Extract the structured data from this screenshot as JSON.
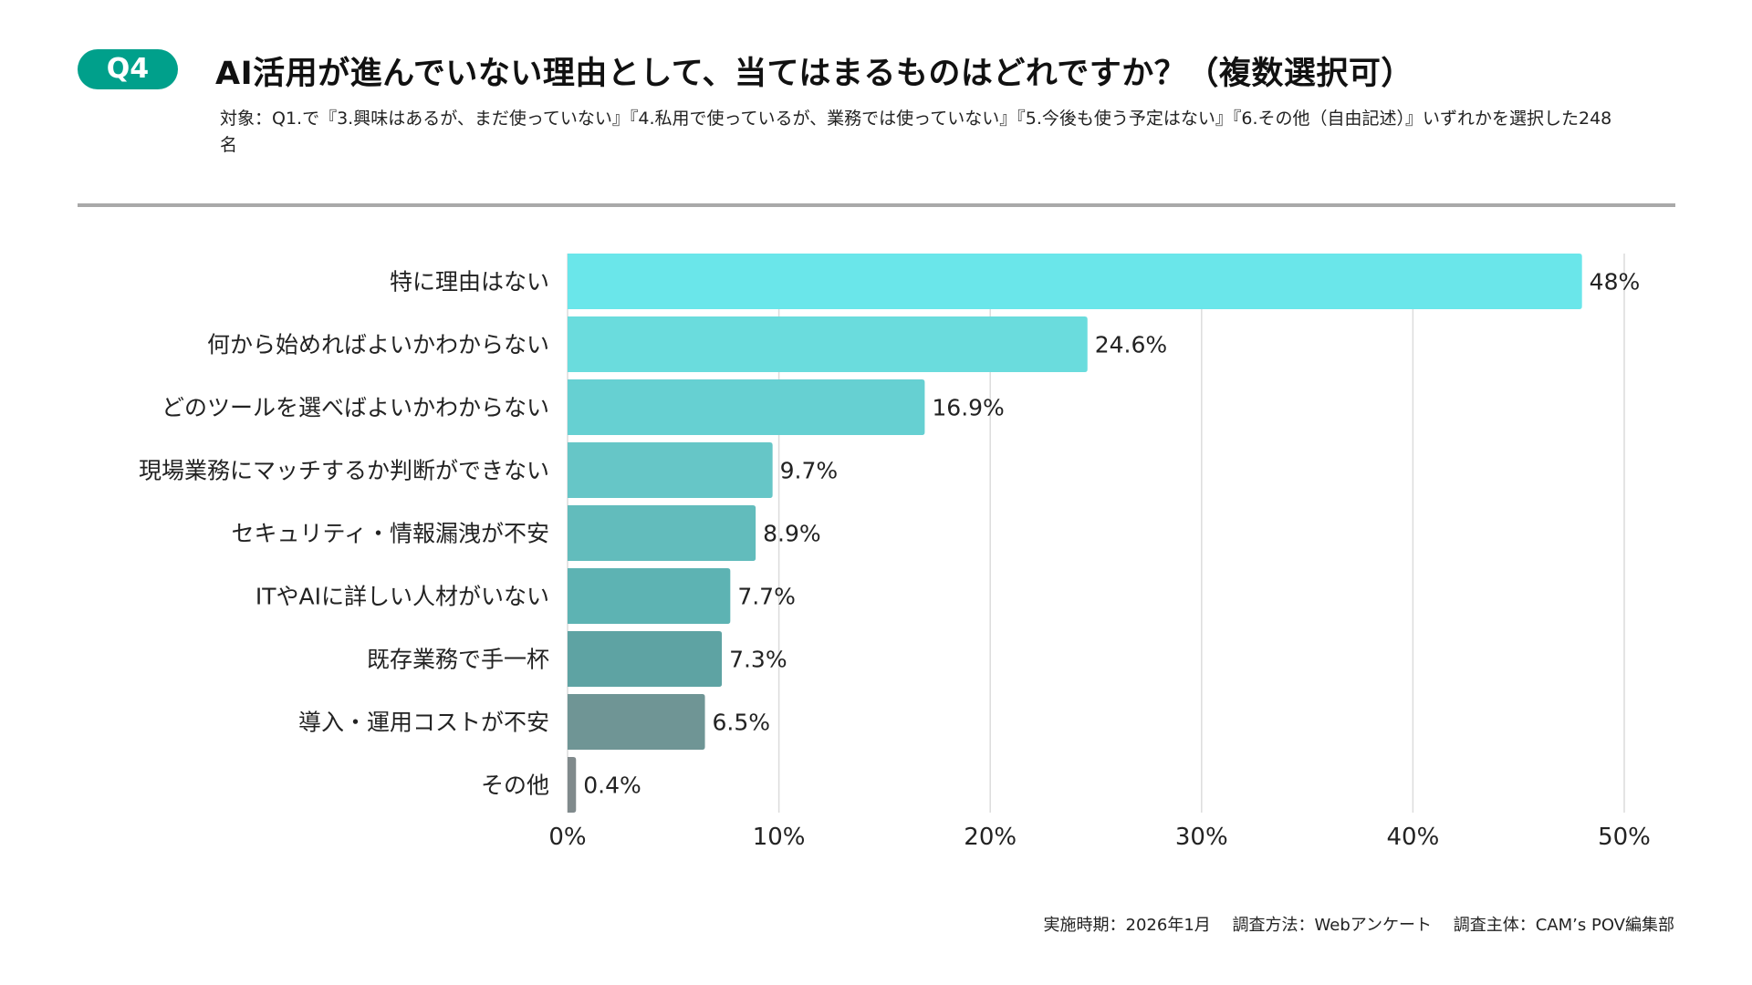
{
  "header": {
    "badge": "Q4",
    "title": "AI活用が進んでいない理由として、当てはまるものはどれですか？（複数選択可）",
    "subtitle": "対象：Q1.で『3.興味はあるが、まだ使っていない』『4.私用で使っているが、業務では使っていない』『5.今後も使う予定はない』『6.その他（自由記述）』いずれかを選択した248名",
    "badge_color": "#00a08b"
  },
  "chart_data": {
    "type": "bar",
    "orientation": "horizontal",
    "categories": [
      "特に理由はない",
      "何から始めればよいかわからない",
      "どのツールを選べばよいかわからない",
      "現場業務にマッチするか判断ができない",
      "セキュリティ・情報漏洩が不安",
      "ITやAIに詳しい人材がいない",
      "既存業務で手一杯",
      "導入・運用コストが不安",
      "その他"
    ],
    "values": [
      48,
      24.6,
      16.9,
      9.7,
      8.9,
      7.7,
      7.3,
      6.5,
      0.4
    ],
    "data_labels": [
      "48%",
      "24.6%",
      "16.9%",
      "9.7%",
      "8.9%",
      "7.7%",
      "7.3%",
      "6.5%",
      "0.4%"
    ],
    "colors": [
      "#6ae6ea",
      "#6adcdd",
      "#66d0d2",
      "#66c6c7",
      "#62bcbc",
      "#5db3b3",
      "#5ea3a3",
      "#6f9595",
      "#808a8c"
    ],
    "xlim": [
      0,
      50
    ],
    "x_ticks": [
      "0%",
      "10%",
      "20%",
      "30%",
      "40%",
      "50%"
    ],
    "grid": true
  },
  "footer": {
    "text": "実施時期：2026年1月　 調査方法：Webアンケート　 調査主体：CAM’s POV編集部"
  }
}
